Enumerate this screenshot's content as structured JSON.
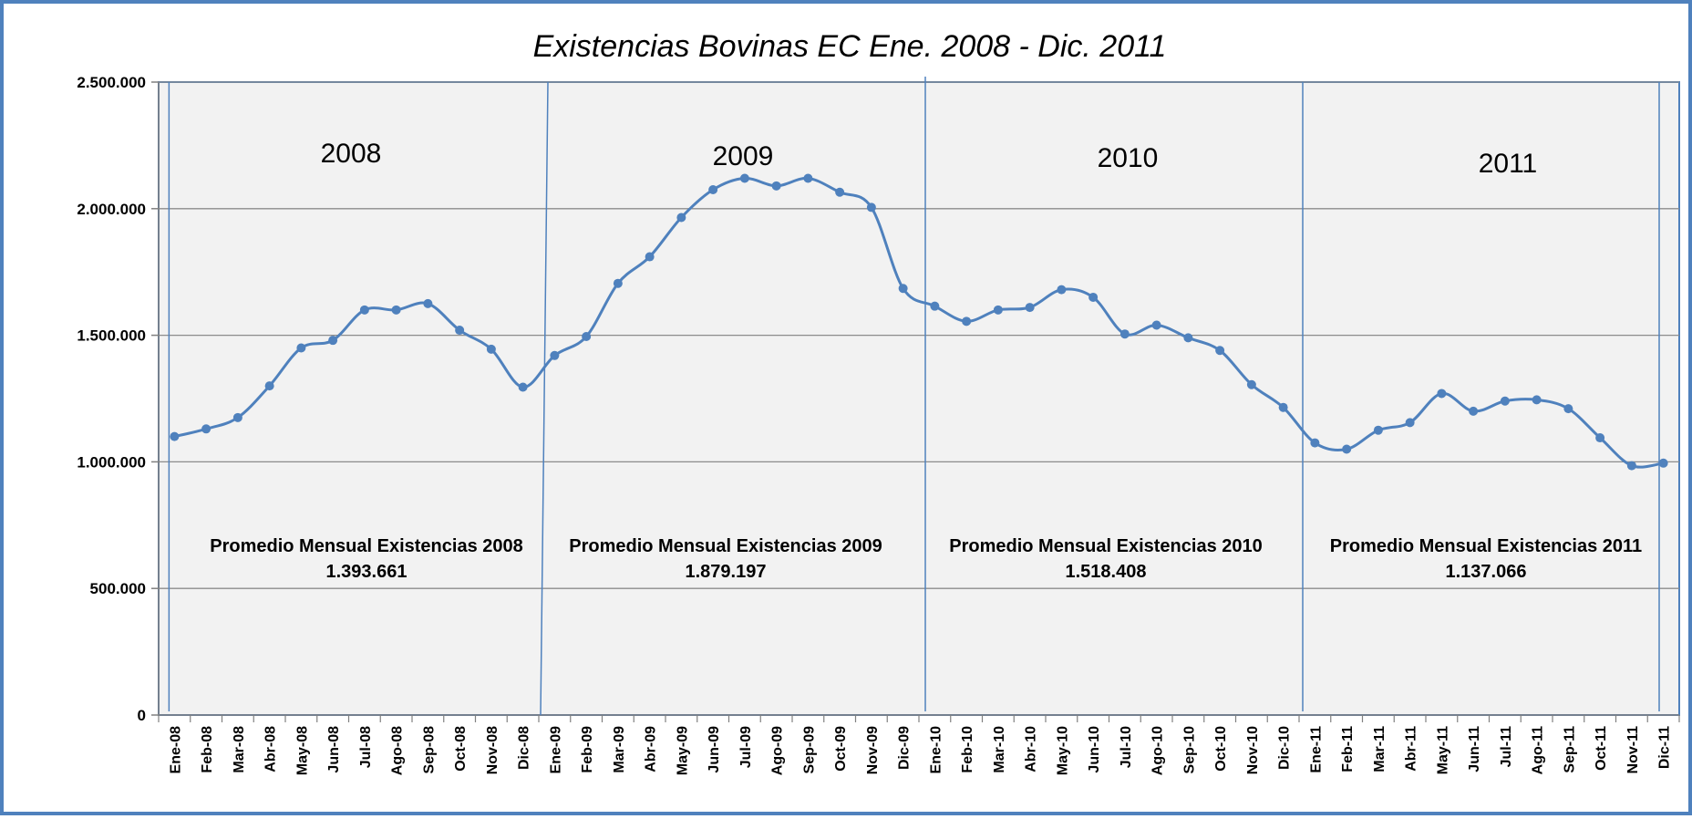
{
  "chart_data": {
    "type": "line",
    "title": "Existencias Bovinas   EC Ene. 2008 - Dic. 2011",
    "xlabel": "",
    "ylabel": "",
    "ylim": [
      0,
      2500000
    ],
    "yticks": [
      0,
      500000,
      1000000,
      1500000,
      2000000,
      2500000
    ],
    "ytick_labels": [
      "0",
      "500.000",
      "1.000.000",
      "1.500.000",
      "2.000.000",
      "2.500.000"
    ],
    "grid": true,
    "line_color": "#4f81bd",
    "plot_background": "#f2f2f2",
    "categories": [
      "Ene-08",
      "Feb-08",
      "Mar-08",
      "Abr-08",
      "May-08",
      "Jun-08",
      "Jul-08",
      "Ago-08",
      "Sep-08",
      "Oct-08",
      "Nov-08",
      "Dic-08",
      "Ene-09",
      "Feb-09",
      "Mar-09",
      "Abr-09",
      "May-09",
      "Jun-09",
      "Jul-09",
      "Ago-09",
      "Sep-09",
      "Oct-09",
      "Nov-09",
      "Dic-09",
      "Ene-10",
      "Feb-10",
      "Mar-10",
      "Abr-10",
      "May-10",
      "Jun-10",
      "Jul-10",
      "Ago-10",
      "Sep-10",
      "Oct-10",
      "Nov-10",
      "Dic-10",
      "Ene-11",
      "Feb-11",
      "Mar-11",
      "Abr-11",
      "May-11",
      "Jun-11",
      "Jul-11",
      "Ago-11",
      "Sep-11",
      "Oct-11",
      "Nov-11",
      "Dic-11"
    ],
    "values": [
      1100000,
      1130000,
      1175000,
      1300000,
      1450000,
      1480000,
      1600000,
      1600000,
      1625000,
      1520000,
      1445000,
      1295000,
      1420000,
      1495000,
      1705000,
      1810000,
      1965000,
      2075000,
      2120000,
      2090000,
      2120000,
      2065000,
      2005000,
      1685000,
      1615000,
      1555000,
      1600000,
      1610000,
      1680000,
      1650000,
      1505000,
      1540000,
      1490000,
      1440000,
      1305000,
      1215000,
      1075000,
      1050000,
      1125000,
      1155000,
      1270000,
      1200000,
      1240000,
      1245000,
      1210000,
      1095000,
      985000,
      995000
    ],
    "year_labels": [
      "2008",
      "2009",
      "2010",
      "2011"
    ],
    "averages": [
      {
        "label": "Promedio  Mensual Existencias 2008",
        "value": "1.393.661"
      },
      {
        "label": "Promedio  Mensual Existencias 2009",
        "value": "1.879.197"
      },
      {
        "label": "Promedio  Mensual Existencias 2010",
        "value": "1.518.408"
      },
      {
        "label": "Promedio  Mensual Existencias 2011",
        "value": "1.137.066"
      }
    ]
  }
}
